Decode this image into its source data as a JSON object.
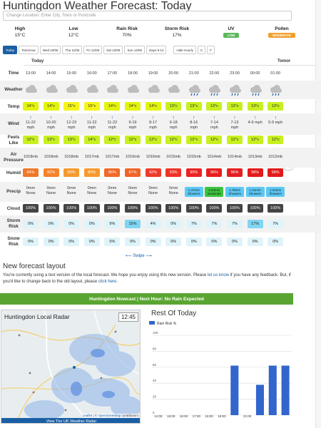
{
  "page_title": "Huntingdon Weather Forecast: Today",
  "location_placeholder": "Change Location: Enter City, Town or Postcode",
  "summary": [
    {
      "label": "High",
      "value": "15°C"
    },
    {
      "label": "Low",
      "value": "12°C"
    },
    {
      "label": "Rain Risk",
      "value": "70%"
    },
    {
      "label": "Storm Risk",
      "value": "17%"
    },
    {
      "label": "UV",
      "value": "LOW",
      "color": "#5cb85c"
    },
    {
      "label": "Pollen",
      "value": "MODERATE",
      "color": "#f0a030"
    }
  ],
  "tabs": [
    "Today",
    "Tomorrow",
    "Wed 10/05",
    "Thu 11/05",
    "Fri 12/05",
    "Sat 13/05",
    "Sun 14/05",
    "Days 8-14"
  ],
  "view_tabs": [
    "Hide Hourly",
    "C",
    "F"
  ],
  "day_labels": {
    "today": "Today",
    "tomorrow": "Tomor"
  },
  "row_labels": {
    "time": "Time",
    "weather": "Weather",
    "temp": "Temp",
    "wind": "Wind",
    "feels": "Feels Like",
    "pressure": "Air Pressure",
    "humid": "Humid",
    "precip": "Precip",
    "cloud": "Cloud",
    "storm": "Storm Risk",
    "snow": "Snow Risk"
  },
  "hours": [
    {
      "time": "13:00",
      "icon": "cloud-icon",
      "temp": "14°c",
      "wind": "11-22 mph",
      "feels": "12°c",
      "pressure": "1018mb",
      "humid": "84%",
      "precip_amt": "0mm",
      "precip_type": "None",
      "cloud": "100%",
      "storm": "0%",
      "snow": "0%"
    },
    {
      "time": "14:00",
      "icon": "cloud-icon",
      "temp": "14°c",
      "wind": "10-20 mph",
      "feels": "13°c",
      "pressure": "1018mb",
      "humid": "82%",
      "precip_amt": "0mm",
      "precip_type": "None",
      "cloud": "100%",
      "storm": "0%",
      "snow": "0%"
    },
    {
      "time": "15:00",
      "icon": "cloud-icon",
      "temp": "15°c",
      "wind": "12-23 mph",
      "feels": "13°c",
      "pressure": "1018mb",
      "humid": "80%",
      "precip_amt": "0mm",
      "precip_type": "None",
      "cloud": "100%",
      "storm": "0%",
      "snow": "0%"
    },
    {
      "time": "16:00",
      "icon": "cloud-icon",
      "temp": "15°c",
      "wind": "11-22 mph",
      "feels": "14°c",
      "pressure": "1017mb",
      "humid": "80%",
      "precip_amt": "0mm",
      "precip_type": "None",
      "cloud": "100%",
      "storm": "0%",
      "snow": "0%"
    },
    {
      "time": "17:00",
      "icon": "cloud-icon",
      "temp": "14°c",
      "wind": "11-22 mph",
      "feels": "12°c",
      "pressure": "1017mb",
      "humid": "86%",
      "precip_amt": "0mm",
      "precip_type": "None",
      "cloud": "100%",
      "storm": "9%",
      "snow": "0%"
    },
    {
      "time": "18:00",
      "icon": "cloud-icon",
      "temp": "14°c",
      "wind": "9-19 mph",
      "feels": "12°c",
      "pressure": "1016mb",
      "humid": "87%",
      "precip_amt": "0mm",
      "precip_type": "None",
      "cloud": "100%",
      "storm": "15%",
      "snow": "0%"
    },
    {
      "time": "19:00",
      "icon": "cloud-icon",
      "temp": "14°c",
      "wind": "8-17 mph",
      "feels": "12°c",
      "pressure": "1016mb",
      "humid": "92%",
      "precip_amt": "0mm",
      "precip_type": "None",
      "cloud": "100%",
      "storm": "4%",
      "snow": "0%"
    },
    {
      "time": "20:00",
      "icon": "cloud-icon",
      "temp": "13°c",
      "wind": "9-18 mph",
      "feels": "12°c",
      "pressure": "1015mb",
      "humid": "93%",
      "precip_amt": "0mm",
      "precip_type": "None",
      "cloud": "100%",
      "storm": "0%",
      "snow": "0%"
    },
    {
      "time": "21:00",
      "icon": "rain-cloud-icon",
      "temp": "13°c",
      "wind": "8-16 mph",
      "feels": "12°c",
      "pressure": "1015mb",
      "humid": "95%",
      "precip_amt": "1.47mm",
      "precip_type": "Showers",
      "cloud": "100%",
      "storm": "7%",
      "snow": "0%"
    },
    {
      "time": "22:00",
      "icon": "rain-cloud-icon",
      "temp": "13°c",
      "wind": "7-14 mph",
      "feels": "12°c",
      "pressure": "1014mb",
      "humid": "96%",
      "precip_amt": "2.53mm",
      "precip_type": "Moderate",
      "cloud": "100%",
      "storm": "7%",
      "snow": "0%"
    },
    {
      "time": "23:00",
      "icon": "rain-cloud-icon",
      "temp": "13°c",
      "wind": "7-13 mph",
      "feels": "12°c",
      "pressure": "1014mb",
      "humid": "96%",
      "precip_amt": "1.78mm",
      "precip_type": "Showers",
      "cloud": "100%",
      "storm": "7%",
      "snow": "0%"
    },
    {
      "time": "00:00",
      "icon": "rain-cloud-icon",
      "temp": "13°c",
      "wind": "4-9 mph",
      "feels": "12°c",
      "pressure": "1013mb",
      "humid": "98%",
      "precip_amt": "1.41mm",
      "precip_type": "Showers",
      "cloud": "100%",
      "storm": "17%",
      "snow": "0%"
    },
    {
      "time": "01:00",
      "icon": "rain-cloud-icon",
      "temp": "13°c",
      "wind": "5-9 mph",
      "feels": "12°c",
      "pressure": "1012mb",
      "humid": "98%",
      "precip_amt": "1.34mm",
      "precip_type": "Showers",
      "cloud": "100%",
      "storm": "7%",
      "snow": "0%"
    }
  ],
  "temp_colors": {
    "14°c": "#e2f40c",
    "15°c": "#f5f51a",
    "13°c": "#c8f020"
  },
  "feels_color": "#c8f020",
  "humid_colors": {
    "84%": "#f07828",
    "82%": "#f5832a",
    "80%": "#f59a30",
    "86%": "#f06a28",
    "87%": "#f06428",
    "92%": "#ee3b2a",
    "93%": "#ee3327",
    "95%": "#ea2424",
    "96%": "#e61e1e",
    "98%": "#e31a1a"
  },
  "swipe_label": "⟵ Swipe ⟶",
  "scroll_next": "›",
  "new_layout": {
    "title": "New forecast layout",
    "text_a": "You're currently using a test version of the local forecast. We hope you enjoy using this new version. Please ",
    "link_a": "let us know",
    "text_b": " if you have any feedback. But, if you'd like to change back to the old layout, please ",
    "link_b": "click here",
    "text_c": "."
  },
  "nowcast": "Huntingdon Nowcast | Next Hour: No Rain Expected",
  "radar": {
    "title": "Huntingdon Local Radar",
    "time": "12:45",
    "credit_a": "Leaflet",
    "credit_sep": " | © ",
    "credit_b": "OpenStreetMap",
    "credit_c": " contributors",
    "link": "View The UK Weather Radar"
  },
  "rest_title": "Rest Of Today",
  "chart_data": {
    "type": "bar",
    "legend": "Rain Risk %",
    "categories": [
      "14:00",
      "15:00",
      "16:00",
      "17:00",
      "18:00",
      "19:00",
      "20:00",
      "21:00",
      "22:00",
      "23:00",
      "00:00"
    ],
    "series": [
      {
        "name": "Rain Risk %",
        "values": [
          0,
          0,
          0,
          0,
          0,
          0,
          62,
          0,
          38,
          62,
          62
        ]
      }
    ],
    "ylim": [
      0,
      100
    ],
    "yticks": [
      0,
      20,
      40,
      60,
      80,
      100
    ],
    "color": "#3366cc",
    "grid": true,
    "legend_position": "top-left"
  }
}
